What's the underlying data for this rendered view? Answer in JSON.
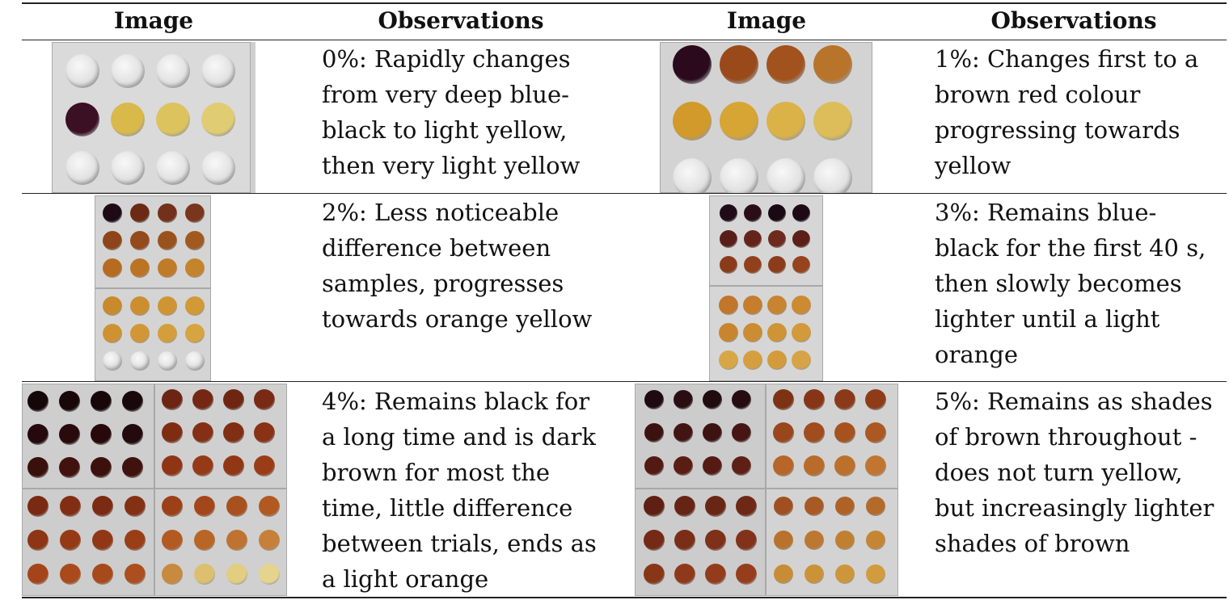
{
  "headers": [
    "Image",
    "Observations",
    "Image",
    "Observations"
  ],
  "rows": [
    {
      "left": {
        "lines": [
          "0%: Rapidly changes",
          "from very deep blue-",
          "black to light yellow,",
          "then very light yellow"
        ]
      },
      "right": {
        "lines": [
          "1%: Changes first to a",
          "brown red colour",
          "progressing towards",
          "yellow"
        ]
      }
    },
    {
      "left": {
        "lines": [
          "2%: Less noticeable",
          "difference between",
          "samples, progresses",
          "towards orange yellow"
        ]
      },
      "right": {
        "lines": [
          "3%: Remains blue-",
          "black for the first 40 s,",
          "then slowly becomes",
          "lighter until a light",
          "orange"
        ]
      }
    },
    {
      "left": {
        "lines": [
          "4%: Remains black for",
          "a long time and is dark",
          "brown for most the",
          "time, little difference",
          "between trials, ends as",
          "a light orange"
        ]
      },
      "right": {
        "lines": [
          "5%: Remains as shades",
          "of brown throughout -",
          "does not turn yellow,",
          "but increasingly lighter",
          "shades of brown"
        ]
      }
    }
  ]
}
